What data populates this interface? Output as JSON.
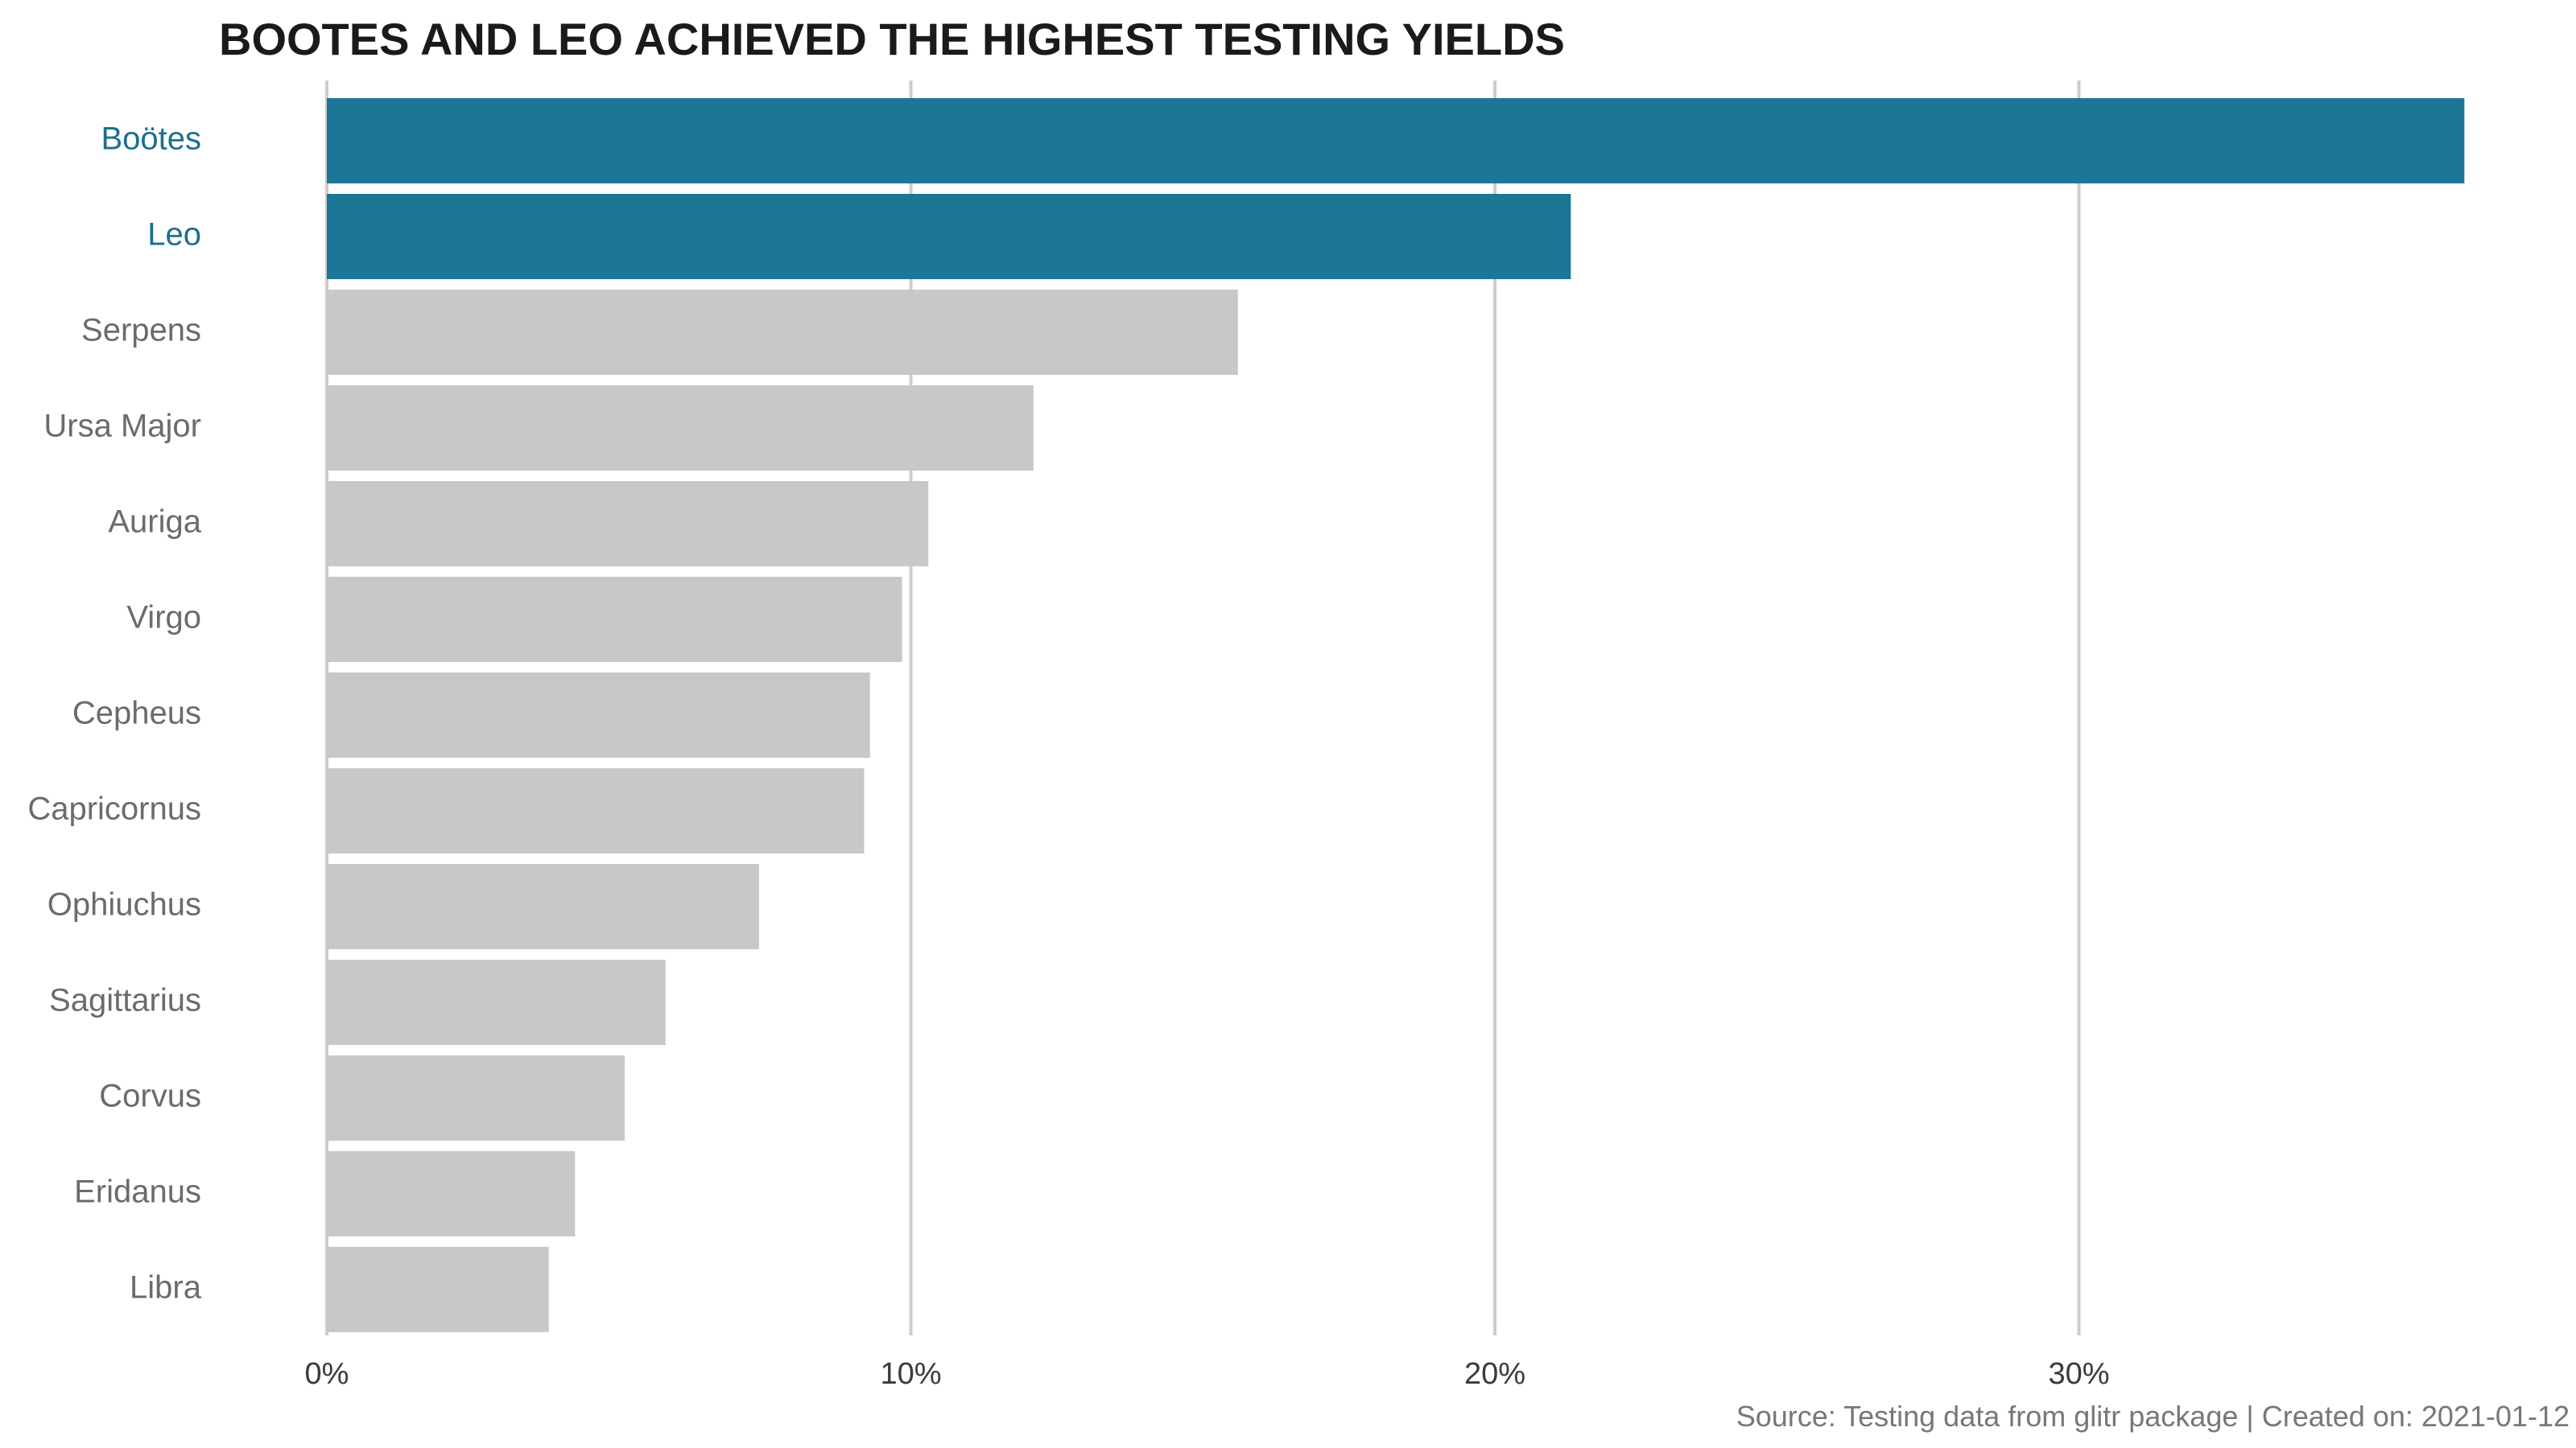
{
  "chart_data": {
    "type": "bar",
    "orientation": "horizontal",
    "title": "BOOTES AND LEO ACHIEVED THE HIGHEST TESTING YIELDS",
    "caption": "Source: Testing data from glitr package | Created on: 2021-01-12",
    "categories": [
      "Boötes",
      "Leo",
      "Serpens",
      "Ursa Major",
      "Auriga",
      "Virgo",
      "Cepheus",
      "Capricornus",
      "Ophiuchus",
      "Sagittarius",
      "Corvus",
      "Eridanus",
      "Libra"
    ],
    "values": [
      36.6,
      21.3,
      15.6,
      12.1,
      10.3,
      9.85,
      9.3,
      9.2,
      7.4,
      5.8,
      5.1,
      4.25,
      3.8
    ],
    "highlight": [
      true,
      true,
      false,
      false,
      false,
      false,
      false,
      false,
      false,
      false,
      false,
      false,
      false
    ],
    "xlim": [
      0,
      37
    ],
    "xticks": [
      0,
      10,
      20,
      30
    ],
    "xtick_labels": [
      "0%",
      "10%",
      "20%",
      "30%"
    ],
    "grid": "vertical",
    "legend": "none",
    "colors": {
      "highlight": "#1c7695",
      "default": "#c7c8ca",
      "grid": "#cccccc",
      "highlight_label": "#1c6f8f",
      "default_label": "#6b6b6b"
    }
  }
}
